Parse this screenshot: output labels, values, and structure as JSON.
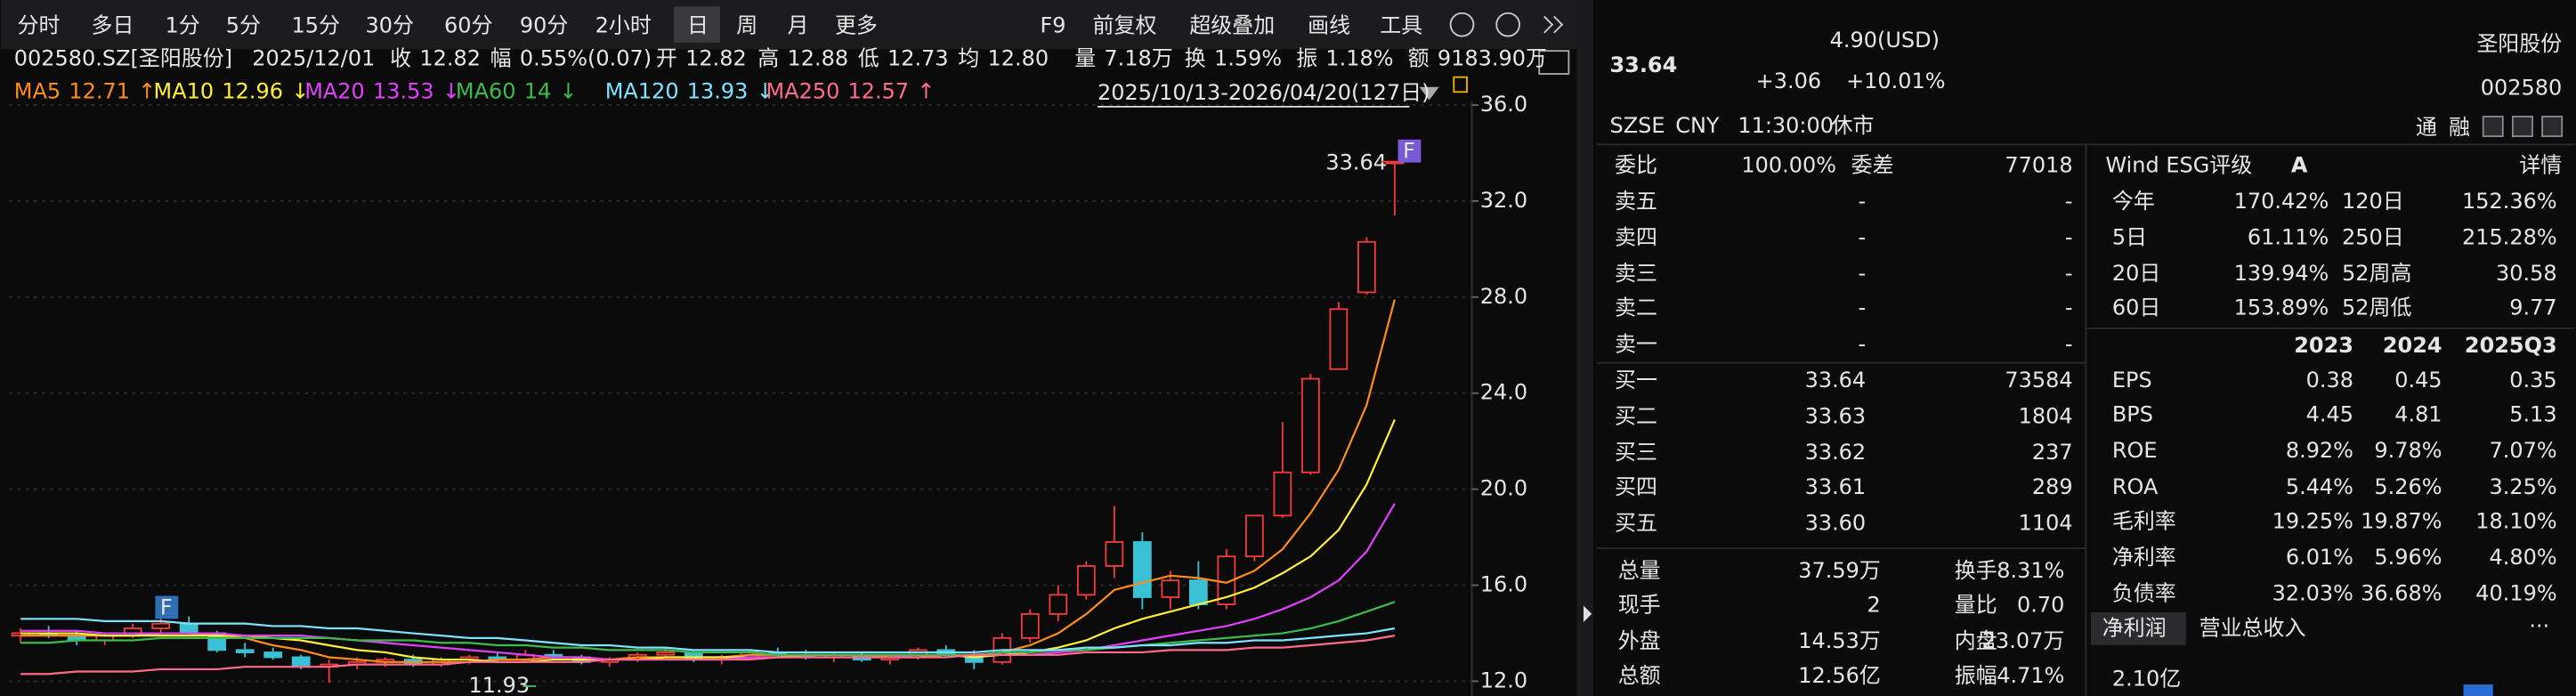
{
  "toolbar": {
    "periods": [
      "分时",
      "多日",
      "1分",
      "5分",
      "15分",
      "30分",
      "60分",
      "90分",
      "2小时",
      "日",
      "周",
      "月",
      "更多"
    ],
    "active": "日",
    "tools": [
      "F9",
      "前复权",
      "超级叠加",
      "画线",
      "工具"
    ]
  },
  "info": {
    "symbol": "002580.SZ[圣阳股份]",
    "date": "2025/12/01",
    "fields": [
      {
        "label": "收",
        "value": "12.82",
        "color": "#f23a3a"
      },
      {
        "label": "幅",
        "value": "0.55%(0.07)",
        "color": "#f23a3a"
      },
      {
        "label": "开",
        "value": "12.82",
        "color": "#f23a3a"
      },
      {
        "label": "高",
        "value": "12.88",
        "color": "#f23a3a"
      },
      {
        "label": "低",
        "value": "12.73",
        "color": "#3fbf5f"
      },
      {
        "label": "均",
        "value": "12.80",
        "color": "#f23a3a"
      },
      {
        "label": "量",
        "value": "7.18万",
        "color": "#e6e6e6"
      },
      {
        "label": "换",
        "value": "1.59%",
        "color": "#e6e6e6"
      },
      {
        "label": "振",
        "value": "1.18%",
        "color": "#e6e6e6"
      },
      {
        "label": "额",
        "value": "9183.90万",
        "color": "#e6e6e6"
      }
    ],
    "range": "2025/10/13-2026/04/20(127日)"
  },
  "chart_data": {
    "type": "candlestick",
    "ylim": [
      12,
      36
    ],
    "yticks": [
      {
        "value": 12,
        "label": "12.0"
      },
      {
        "value": 16,
        "label": "16.0"
      },
      {
        "value": 20,
        "label": "20.0"
      },
      {
        "value": 24,
        "label": "24.0"
      },
      {
        "value": 28,
        "label": "28.0"
      },
      {
        "value": 32,
        "label": "32.0"
      },
      {
        "value": 36,
        "label": "36.0"
      }
    ],
    "up_color": "#f23a3a",
    "down_color": "#3ac1d6",
    "ohlc": [
      [
        13.9,
        14.2,
        13.6,
        14.0
      ],
      [
        14.0,
        14.3,
        13.8,
        13.9
      ],
      [
        13.9,
        14.1,
        13.5,
        13.7
      ],
      [
        13.7,
        14.0,
        13.5,
        13.9
      ],
      [
        13.9,
        14.4,
        13.8,
        14.2
      ],
      [
        14.2,
        14.6,
        14.0,
        14.4
      ],
      [
        14.4,
        14.7,
        13.9,
        14.0
      ],
      [
        14.0,
        14.1,
        13.2,
        13.3
      ],
      [
        13.3,
        13.6,
        13.0,
        13.2
      ],
      [
        13.2,
        13.4,
        12.9,
        13.0
      ],
      [
        13.0,
        13.1,
        12.5,
        12.6
      ],
      [
        12.6,
        12.9,
        11.93,
        12.7
      ],
      [
        12.7,
        13.0,
        12.5,
        12.8
      ],
      [
        12.8,
        13.0,
        12.6,
        12.9
      ],
      [
        12.9,
        13.1,
        12.6,
        12.7
      ],
      [
        12.7,
        13.0,
        12.6,
        12.9
      ],
      [
        12.9,
        13.1,
        12.7,
        13.0
      ],
      [
        13.0,
        13.2,
        12.8,
        12.9
      ],
      [
        12.9,
        13.3,
        12.8,
        13.1
      ],
      [
        13.1,
        13.3,
        12.9,
        13.0
      ],
      [
        13.0,
        13.1,
        12.7,
        12.8
      ],
      [
        12.8,
        13.0,
        12.6,
        12.9
      ],
      [
        12.9,
        13.2,
        12.8,
        13.1
      ],
      [
        13.1,
        13.4,
        13.0,
        13.2
      ],
      [
        13.2,
        13.3,
        12.8,
        12.9
      ],
      [
        12.9,
        13.1,
        12.7,
        13.0
      ],
      [
        13.0,
        13.3,
        12.9,
        13.2
      ],
      [
        13.2,
        13.4,
        13.0,
        13.1
      ],
      [
        13.1,
        13.3,
        12.9,
        13.0
      ],
      [
        13.0,
        13.2,
        12.8,
        13.1
      ],
      [
        13.1,
        13.2,
        12.8,
        12.9
      ],
      [
        12.9,
        13.1,
        12.7,
        13.0
      ],
      [
        13.0,
        13.4,
        12.9,
        13.3
      ],
      [
        13.3,
        13.5,
        13.0,
        13.1
      ],
      [
        13.1,
        13.3,
        12.5,
        12.8
      ],
      [
        12.8,
        14.0,
        12.7,
        13.8
      ],
      [
        13.8,
        15.0,
        13.6,
        14.8
      ],
      [
        14.8,
        16.0,
        14.5,
        15.6
      ],
      [
        15.6,
        17.0,
        15.4,
        16.8
      ],
      [
        16.8,
        19.3,
        16.3,
        17.8
      ],
      [
        17.8,
        18.2,
        15.0,
        15.5
      ],
      [
        15.5,
        16.6,
        15.0,
        16.2
      ],
      [
        16.2,
        17.0,
        15.0,
        15.2
      ],
      [
        15.2,
        17.5,
        15.0,
        17.2
      ],
      [
        17.2,
        18.9,
        17.0,
        18.9
      ],
      [
        18.9,
        22.8,
        18.8,
        20.7
      ],
      [
        20.7,
        24.8,
        20.6,
        24.6
      ],
      [
        25.0,
        27.8,
        25.0,
        27.5
      ],
      [
        28.2,
        30.5,
        28.1,
        30.3
      ],
      [
        33.64,
        33.64,
        31.4,
        33.64
      ]
    ],
    "series": [
      {
        "name": "MA5",
        "color": "#ff8c1a",
        "legend_value": 12.71,
        "trend": "↑",
        "values": [
          13.9,
          13.9,
          13.9,
          13.9,
          13.9,
          14.0,
          14.0,
          13.9,
          13.8,
          13.5,
          13.3,
          13.0,
          12.9,
          12.8,
          12.8,
          12.8,
          12.8,
          12.9,
          12.9,
          13.0,
          13.0,
          12.9,
          13.0,
          13.0,
          13.0,
          13.0,
          13.1,
          13.1,
          13.1,
          13.1,
          13.1,
          13.0,
          13.0,
          13.1,
          13.0,
          13.2,
          13.5,
          14.0,
          14.8,
          15.8,
          16.1,
          16.4,
          16.3,
          16.1,
          16.6,
          17.5,
          19.0,
          20.8,
          23.5,
          27.9
        ]
      },
      {
        "name": "MA10",
        "color": "#ffef3a",
        "legend_value": 12.96,
        "trend": "↓",
        "values": [
          14.0,
          14.0,
          14.0,
          13.9,
          13.9,
          13.9,
          13.9,
          13.9,
          13.9,
          13.8,
          13.7,
          13.5,
          13.3,
          13.2,
          13.0,
          12.9,
          12.9,
          12.8,
          12.8,
          12.9,
          12.9,
          12.9,
          12.9,
          13.0,
          13.0,
          13.0,
          13.0,
          13.0,
          13.1,
          13.1,
          13.1,
          13.1,
          13.1,
          13.1,
          13.0,
          13.1,
          13.2,
          13.4,
          13.7,
          14.2,
          14.6,
          14.9,
          15.2,
          15.5,
          15.9,
          16.5,
          17.2,
          18.3,
          20.2,
          22.9
        ]
      },
      {
        "name": "MA20",
        "color": "#e040fb",
        "legend_value": 13.53,
        "trend": "↓",
        "values": [
          14.1,
          14.1,
          14.1,
          14.0,
          14.0,
          14.0,
          14.0,
          14.0,
          13.9,
          13.9,
          13.9,
          13.8,
          13.7,
          13.6,
          13.5,
          13.4,
          13.3,
          13.2,
          13.1,
          13.0,
          13.0,
          12.9,
          12.9,
          12.9,
          12.9,
          12.9,
          13.0,
          13.0,
          13.0,
          13.0,
          13.0,
          13.0,
          13.1,
          13.1,
          13.1,
          13.1,
          13.1,
          13.2,
          13.3,
          13.5,
          13.7,
          13.9,
          14.1,
          14.3,
          14.6,
          15.0,
          15.5,
          16.2,
          17.4,
          19.4
        ]
      },
      {
        "name": "MA60",
        "color": "#3dbb4a",
        "legend_value": 14.0,
        "trend": "↓",
        "values": [
          13.6,
          13.6,
          13.7,
          13.7,
          13.7,
          13.8,
          13.8,
          13.8,
          13.8,
          13.8,
          13.8,
          13.8,
          13.7,
          13.7,
          13.7,
          13.6,
          13.6,
          13.5,
          13.5,
          13.4,
          13.4,
          13.3,
          13.3,
          13.3,
          13.2,
          13.2,
          13.2,
          13.1,
          13.1,
          13.1,
          13.1,
          13.1,
          13.1,
          13.1,
          13.1,
          13.2,
          13.2,
          13.3,
          13.3,
          13.4,
          13.5,
          13.6,
          13.7,
          13.8,
          13.9,
          14.0,
          14.2,
          14.5,
          14.9,
          15.3
        ]
      },
      {
        "name": "MA120",
        "color": "#7fe3ff",
        "legend_value": 13.93,
        "trend": "↓",
        "values": [
          14.6,
          14.6,
          14.6,
          14.5,
          14.5,
          14.5,
          14.4,
          14.4,
          14.4,
          14.3,
          14.3,
          14.2,
          14.2,
          14.1,
          14.0,
          13.9,
          13.8,
          13.8,
          13.7,
          13.6,
          13.5,
          13.5,
          13.4,
          13.4,
          13.3,
          13.3,
          13.3,
          13.2,
          13.2,
          13.2,
          13.2,
          13.2,
          13.2,
          13.2,
          13.2,
          13.3,
          13.3,
          13.3,
          13.4,
          13.4,
          13.5,
          13.5,
          13.6,
          13.6,
          13.7,
          13.7,
          13.8,
          13.9,
          14.0,
          14.2
        ]
      },
      {
        "name": "MA250",
        "color": "#ff6b8a",
        "legend_value": 12.57,
        "trend": "↑",
        "values": [
          12.3,
          12.3,
          12.4,
          12.4,
          12.4,
          12.5,
          12.5,
          12.5,
          12.6,
          12.6,
          12.6,
          12.6,
          12.7,
          12.7,
          12.7,
          12.7,
          12.8,
          12.8,
          12.8,
          12.8,
          12.8,
          12.9,
          12.9,
          12.9,
          12.9,
          12.9,
          12.9,
          13.0,
          13.0,
          13.0,
          13.0,
          13.0,
          13.0,
          13.0,
          13.1,
          13.1,
          13.1,
          13.1,
          13.2,
          13.2,
          13.2,
          13.3,
          13.3,
          13.3,
          13.4,
          13.4,
          13.5,
          13.6,
          13.7,
          13.9
        ]
      }
    ],
    "max_label": 33.64,
    "min_label": 11.93,
    "markers": [
      "F",
      "F"
    ]
  },
  "quote": {
    "price": "33.64",
    "change_usd": "4.90(USD)",
    "change": "+3.06",
    "pct": "+10.01%",
    "name": "圣阳股份",
    "code": "002580",
    "exchange": "SZSE",
    "currency": "CNY",
    "time": "11:30:00",
    "status": "休市",
    "flags": [
      "通",
      "融"
    ]
  },
  "orderbook": {
    "header": [
      "委比",
      "100.00%",
      "委差",
      "77018"
    ],
    "asks": [
      [
        "卖五",
        "-",
        "-"
      ],
      [
        "卖四",
        "-",
        "-"
      ],
      [
        "卖三",
        "-",
        "-"
      ],
      [
        "卖二",
        "-",
        "-"
      ],
      [
        "卖一",
        "-",
        "-"
      ]
    ],
    "bids": [
      [
        "买一",
        "33.64",
        "73584"
      ],
      [
        "买二",
        "33.63",
        "1804"
      ],
      [
        "买三",
        "33.62",
        "237"
      ],
      [
        "买四",
        "33.61",
        "289"
      ],
      [
        "买五",
        "33.60",
        "1104"
      ]
    ],
    "stats": [
      [
        "总量",
        "37.59万",
        "换手",
        "8.31%"
      ],
      [
        "现手",
        "2",
        "量比",
        "0.70"
      ],
      [
        "外盘",
        "14.53万",
        "内盘",
        "23.07万"
      ],
      [
        "总额",
        "12.56亿",
        "振幅",
        "4.71%"
      ]
    ]
  },
  "profile": {
    "esg_title": "Wind ESG评级",
    "esg_rating": "A",
    "detail": "详情",
    "returns": [
      [
        "今年",
        "170.42%",
        "120日",
        "152.36%"
      ],
      [
        "5日",
        "61.11%",
        "250日",
        "215.28%"
      ],
      [
        "20日",
        "139.94%",
        "52周高",
        "30.58"
      ],
      [
        "60日",
        "153.89%",
        "52周低",
        "9.77"
      ]
    ],
    "fin_header": [
      "2023",
      "2024",
      "2025Q3"
    ],
    "fin_rows": [
      [
        "EPS",
        "0.38",
        "0.45",
        "0.35"
      ],
      [
        "BPS",
        "4.45",
        "4.81",
        "5.13"
      ],
      [
        "ROE",
        "8.92%",
        "9.78%",
        "7.07%"
      ],
      [
        "ROA",
        "5.44%",
        "5.26%",
        "3.25%"
      ],
      [
        "毛利率",
        "19.25%",
        "19.87%",
        "18.10%"
      ],
      [
        "净利率",
        "6.01%",
        "5.96%",
        "4.80%"
      ],
      [
        "负债率",
        "32.03%",
        "36.68%",
        "40.19%"
      ]
    ],
    "tabs": [
      "净利润",
      "营业总收入"
    ],
    "more": "···",
    "tab_value": "2.10亿"
  }
}
